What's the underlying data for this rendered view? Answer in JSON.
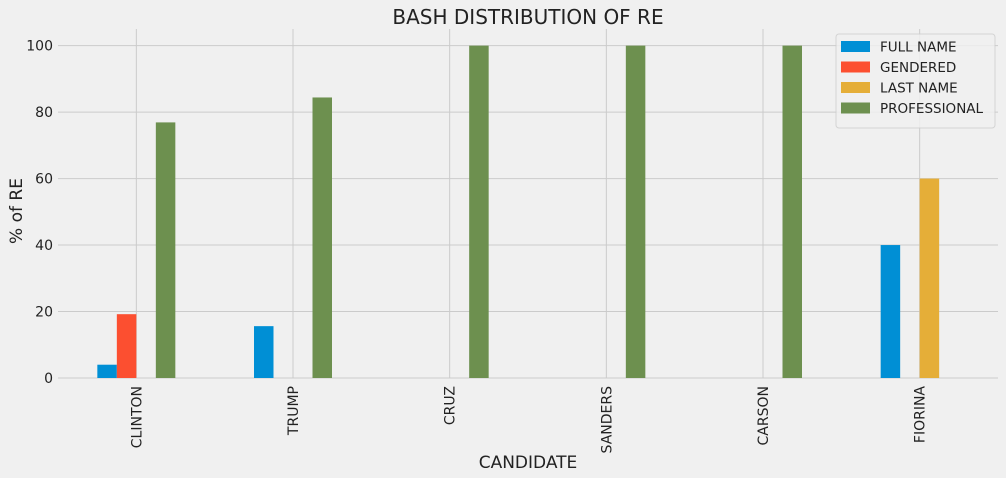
{
  "chart_data": {
    "type": "bar",
    "title": "BASH DISTRIBUTION OF RE",
    "xlabel": "CANDIDATE",
    "ylabel": "% of RE",
    "categories": [
      "CLINTON",
      "TRUMP",
      "CRUZ",
      "SANDERS",
      "CARSON",
      "FIORINA"
    ],
    "series": [
      {
        "name": "FULL NAME",
        "color": "#008fd5",
        "values": [
          4.0,
          15.6,
          0,
          0,
          0,
          40.0
        ]
      },
      {
        "name": "GENDERED",
        "color": "#fc4f30",
        "values": [
          19.2,
          0,
          0,
          0,
          0,
          0
        ]
      },
      {
        "name": "LAST NAME",
        "color": "#e5ae38",
        "values": [
          0,
          0,
          0,
          0,
          0,
          60.0
        ]
      },
      {
        "name": "PROFESSIONAL",
        "color": "#6d904f",
        "values": [
          76.9,
          84.4,
          100,
          100,
          100,
          0
        ]
      }
    ],
    "ylim": [
      0,
      105
    ],
    "yticks": [
      0,
      20,
      40,
      60,
      80,
      100
    ],
    "grid": true,
    "legend_position": "top-right",
    "xtick_rotation": "vertical"
  }
}
